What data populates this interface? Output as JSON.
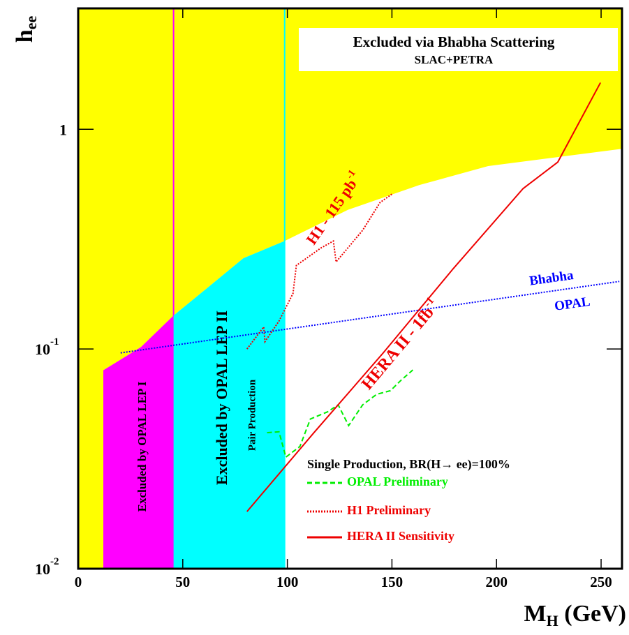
{
  "chart_data": {
    "type": "exclusion",
    "y_label": {
      "text": "h",
      "subscript": "ee"
    },
    "x_label": {
      "text": "M",
      "subscript": "H",
      "suffix": " (GeV)"
    },
    "xlim": [
      0,
      260
    ],
    "ylim": [
      0.01,
      3.55
    ],
    "log_y": true,
    "xticks": [
      0,
      50,
      100,
      150,
      200,
      250
    ],
    "yticks": [
      {
        "value": 0.01,
        "label": "10",
        "exponent": "-2"
      },
      {
        "value": 0.1,
        "label": "10",
        "exponent": "-1"
      },
      1
    ],
    "background_color": "#ffff00",
    "boundary": {
      "x": [
        12,
        30,
        45.6,
        62.7,
        79,
        98.7,
        129,
        163,
        196,
        260
      ],
      "values": [
        0.08,
        0.102,
        0.142,
        0.193,
        0.259,
        0.31,
        0.43,
        0.557,
        0.68,
        0.815
      ]
    },
    "box": {
      "title": "Excluded via Bhabha Scattering",
      "subtitle": "SLAC+PETRA"
    },
    "regions": [
      {
        "label": "Excluded by OPAL LEP I",
        "color": "#ff00ff",
        "x_range": [
          12,
          45.6
        ]
      },
      {
        "label": "Excluded by OPAL LEP II",
        "color": "#00ffff",
        "x_range": [
          45.6,
          98.7
        ]
      }
    ],
    "region_note": "Pair Production",
    "reference_line": {
      "labels": [
        "Bhabha",
        "OPAL"
      ],
      "color": "#0000ff",
      "style": "dotted",
      "x": [
        20.3,
        258.7
      ],
      "values": [
        0.096,
        0.203
      ]
    },
    "legend_title": "Single Production, BR(H→ ee)=100%",
    "series": [
      {
        "name": "OPAL Preliminary",
        "color": "#00ee00",
        "style": "dashed",
        "x": [
          90.3,
          96,
          99.3,
          106,
          111,
          119.3,
          124.3,
          129.3,
          136,
          142.7,
          149.3,
          154.3,
          160
        ],
        "values": [
          0.0416,
          0.042,
          0.0322,
          0.036,
          0.048,
          0.0518,
          0.0557,
          0.0448,
          0.0557,
          0.0622,
          0.0646,
          0.072,
          0.0803
        ]
      },
      {
        "name": "H1 Preliminary",
        "color": "#ee0000",
        "style": "dotted",
        "x": [
          80.7,
          88.7,
          89.3,
          96,
          102.7,
          104.3,
          116,
          122,
          123.3,
          136,
          144.3,
          150
        ],
        "values": [
          0.1,
          0.126,
          0.108,
          0.134,
          0.179,
          0.24,
          0.288,
          0.31,
          0.249,
          0.347,
          0.464,
          0.507
        ]
      },
      {
        "name": "HERA II Sensitivity",
        "color": "#ee0000",
        "style": "solid",
        "x": [
          80.7,
          112.7,
          146,
          179.3,
          212.7,
          229.3,
          249.7
        ],
        "values": [
          0.0182,
          0.0416,
          0.0964,
          0.232,
          0.537,
          0.709,
          1.63
        ]
      }
    ],
    "annotations": [
      {
        "text": "H1 - 115 pb",
        "superscript": "-1",
        "color": "#ee0000"
      },
      {
        "text": "HERA II - 1fb",
        "superscript": "-1",
        "color": "#ee0000"
      }
    ]
  }
}
